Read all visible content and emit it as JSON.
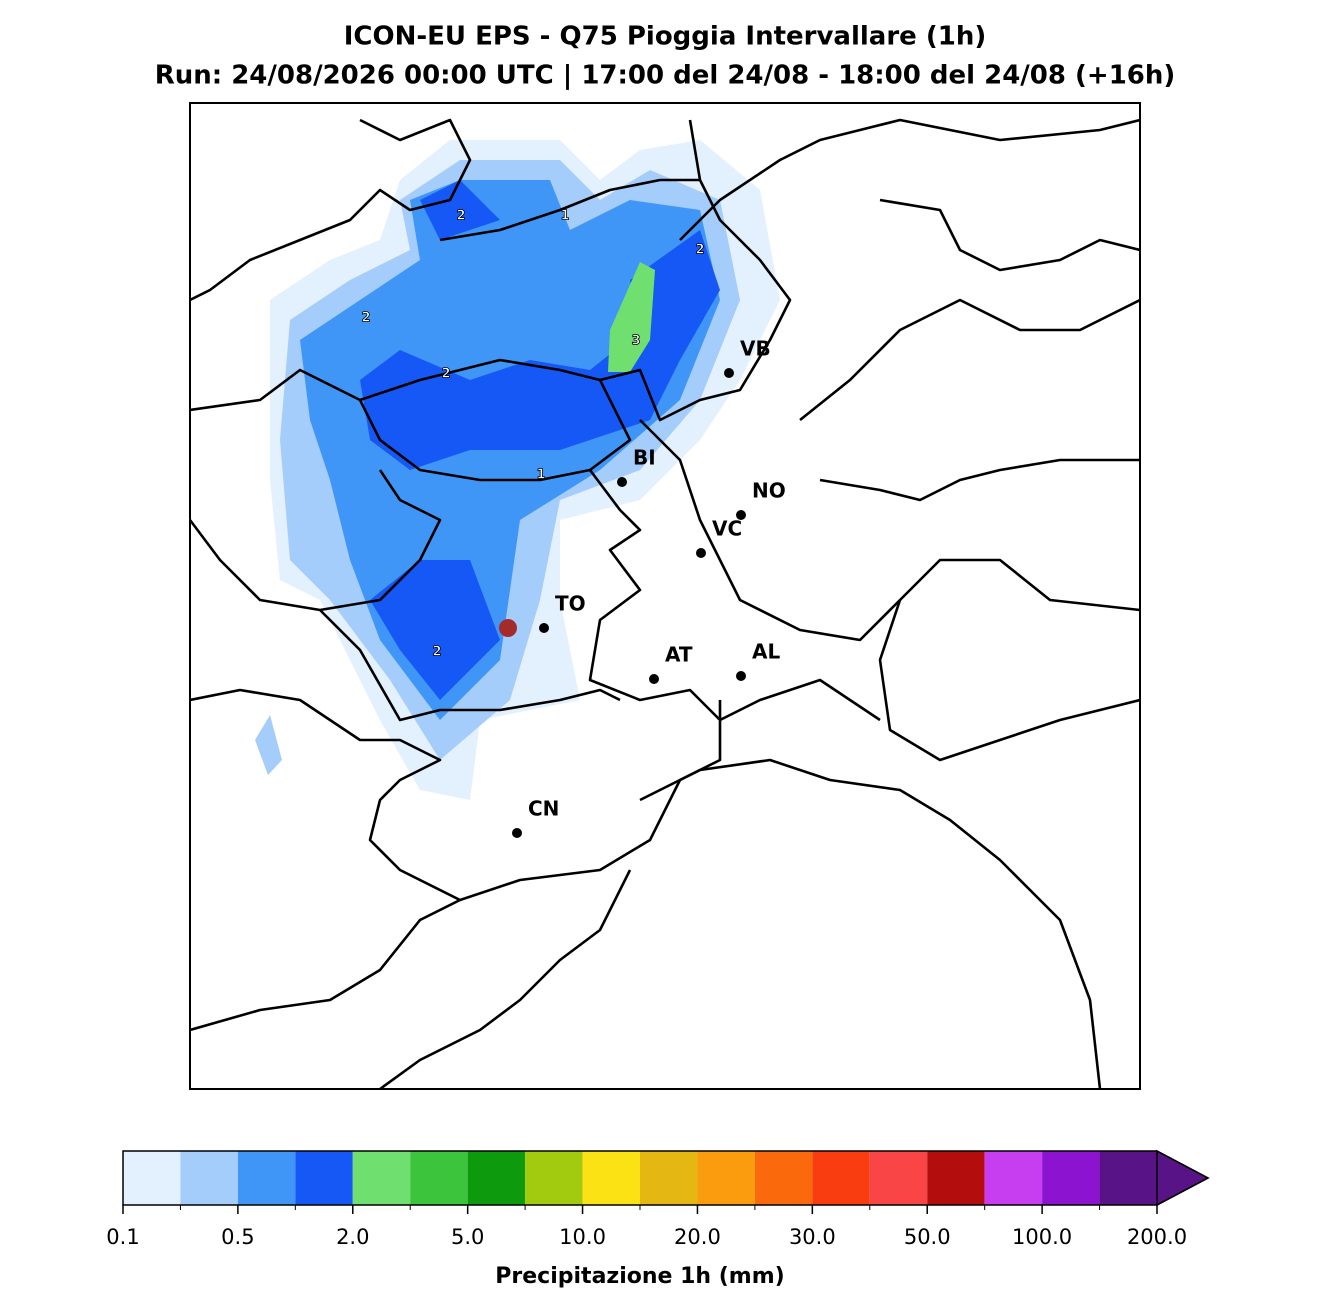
{
  "header": {
    "title": "ICON-EU EPS - Q75 Pioggia Intervallare (1h)",
    "subtitle": "Run: 24/08/2026 00:00 UTC | 17:00 del 24/08 - 18:00 del 24/08 (+16h)"
  },
  "cities": [
    "VB",
    "BI",
    "NO",
    "VC",
    "TO",
    "AT",
    "AL",
    "CN"
  ],
  "contour_labels": [
    2,
    1,
    2,
    2,
    3,
    2,
    1,
    2
  ],
  "colorbar": {
    "label": "Precipitazione 1h (mm)",
    "colors": [
      "#e3f0fd",
      "#a5cdfb",
      "#4096f6",
      "#1658f5",
      "#6fe06f",
      "#3cc43c",
      "#0d9b0d",
      "#a2cb0f",
      "#fbe214",
      "#e5b713",
      "#fb9b0e",
      "#fa6a0d",
      "#f93d10",
      "#f94545",
      "#b30d0d",
      "#c63ef0",
      "#8c13d0",
      "#581486"
    ],
    "ticks": [
      0.1,
      0.5,
      {
        "value": 2,
        "label": "2.0"
      },
      {
        "value": 5,
        "label": "5.0"
      },
      {
        "value": 10,
        "label": "10.0"
      },
      {
        "value": 20,
        "label": "20.0"
      },
      {
        "value": 30,
        "label": "30.0"
      },
      {
        "value": 50,
        "label": "50.0"
      },
      {
        "value": 100,
        "label": "100.0"
      },
      {
        "value": 200,
        "label": "200.0"
      }
    ]
  }
}
